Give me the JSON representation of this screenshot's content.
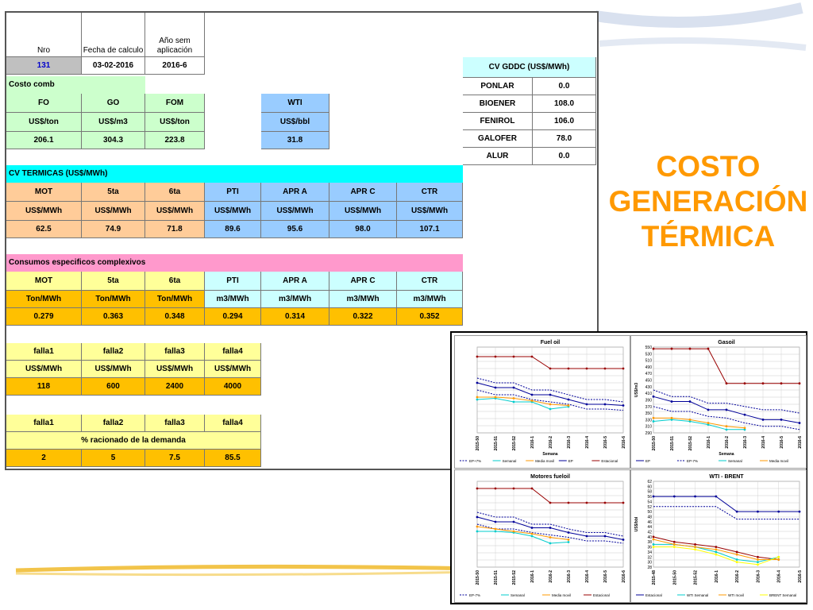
{
  "title_lines": [
    "COSTO",
    "GENERACIÓN",
    "TÉRMICA"
  ],
  "header": {
    "nro_label": "Nro",
    "fecha_label": "Fecha de calculo",
    "ano_label": "Año sem aplicación",
    "nro_value": "131",
    "fecha_value": "03-02-2016",
    "ano_value": "2016-6"
  },
  "costo_comb": {
    "section_label": "Costo comb",
    "headers": [
      "FO",
      "GO",
      "FOM"
    ],
    "units": [
      "US$/ton",
      "US$/m3",
      "US$/ton"
    ],
    "values": [
      "206.1",
      "304.3",
      "223.8"
    ],
    "wti_label": "WTI",
    "wti_unit": "US$/bbl",
    "wti_value": "31.8"
  },
  "cv_gddc": {
    "label": "CV GDDC (US$/MWh)",
    "rows": [
      {
        "name": "PONLAR",
        "value": "0.0"
      },
      {
        "name": "BIOENER",
        "value": "108.0"
      },
      {
        "name": "FENIROL",
        "value": "106.0"
      },
      {
        "name": "GALOFER",
        "value": "78.0"
      },
      {
        "name": "ALUR",
        "value": "0.0"
      }
    ]
  },
  "cv_termicas": {
    "label": "CV TERMICAS (US$/MWh)",
    "headers": [
      "MOT",
      "5ta",
      "6ta",
      "PTI",
      "APR A",
      "APR C",
      "CTR"
    ],
    "units": [
      "US$/MWh",
      "US$/MWh",
      "US$/MWh",
      "US$/MWh",
      "US$/MWh",
      "US$/MWh",
      "US$/MWh"
    ],
    "values": [
      "62.5",
      "74.9",
      "71.8",
      "89.6",
      "95.6",
      "98.0",
      "107.1"
    ]
  },
  "consumos": {
    "label": "Consumos especificos complexivos",
    "headers": [
      "MOT",
      "5ta",
      "6ta",
      "PTI",
      "APR A",
      "APR C",
      "CTR"
    ],
    "units": [
      "Ton/MWh",
      "Ton/MWh",
      "Ton/MWh",
      "m3/MWh",
      "m3/MWh",
      "m3/MWh",
      "m3/MWh"
    ],
    "values": [
      "0.279",
      "0.363",
      "0.348",
      "0.294",
      "0.314",
      "0.322",
      "0.352"
    ]
  },
  "fallas": {
    "headers": [
      "falla1",
      "falla2",
      "falla3",
      "falla4"
    ],
    "units": [
      "US$/MWh",
      "US$/MWh",
      "US$/MWh",
      "US$/MWh"
    ],
    "values": [
      "118",
      "600",
      "2400",
      "4000"
    ]
  },
  "racionado": {
    "headers": [
      "falla1",
      "falla2",
      "falla3",
      "falla4"
    ],
    "label": "% racionado de la demanda",
    "values": [
      "2",
      "5",
      "7.5",
      "85.5"
    ]
  },
  "colors": {
    "title": "#ff9900",
    "light_green": "#ccffcc",
    "light_blue": "#99ccff",
    "peach": "#ffcc99",
    "cyan": "#00ffff",
    "pink": "#ff99cc",
    "orange": "#ffc000",
    "light_yellow": "#ffff99"
  },
  "chart_data": [
    {
      "type": "line",
      "title": "Fuel oil",
      "xlabel": "Semana",
      "ylabel": "",
      "categories": [
        "2015-50",
        "2015-51",
        "2015-52",
        "2016-1",
        "2016-2",
        "2016-3",
        "2016-4",
        "2016-5",
        "2016-6"
      ],
      "ylim": [
        200,
        560
      ],
      "y_ticks": [],
      "legend": [
        "EP+7%",
        "Semanal",
        "Media movil",
        "EP",
        "Estacional"
      ],
      "series": [
        {
          "name": "Estacional",
          "color": "#990000",
          "values": [
            520,
            520,
            520,
            520,
            470,
            470,
            470,
            470,
            470
          ]
        },
        {
          "name": "EP+7%",
          "color": "#000099",
          "dash": true,
          "values": [
            430,
            410,
            410,
            380,
            380,
            360,
            340,
            340,
            330
          ]
        },
        {
          "name": "EP",
          "color": "#000099",
          "values": [
            410,
            390,
            390,
            360,
            360,
            340,
            320,
            320,
            315
          ]
        },
        {
          "name": "EP-7%",
          "color": "#000099",
          "dash": true,
          "values": [
            380,
            360,
            360,
            340,
            330,
            320,
            300,
            300,
            295
          ]
        },
        {
          "name": "Semanal",
          "color": "#00cccc",
          "values": [
            340,
            345,
            330,
            330,
            300,
            310,
            null,
            null,
            null
          ]
        },
        {
          "name": "Media movil",
          "color": "#ff9900",
          "values": [
            350,
            350,
            345,
            335,
            320,
            315,
            null,
            null,
            null
          ]
        }
      ]
    },
    {
      "type": "line",
      "title": "Gasoil",
      "xlabel": "Semana",
      "ylabel": "US$/m3",
      "categories": [
        "2015-50",
        "2015-51",
        "2015-52",
        "2016-1",
        "2016-2",
        "2016-3",
        "2016-4",
        "2016-5",
        "2016-6"
      ],
      "ylim": [
        290,
        550
      ],
      "y_ticks": [
        "550",
        "530",
        "510",
        "490",
        "470",
        "450",
        "430",
        "410",
        "390",
        "370",
        "350",
        "330",
        "310",
        "290"
      ],
      "legend": [
        "EP",
        "EP-7%",
        "Semanal",
        "Media movil"
      ],
      "series": [
        {
          "name": "",
          "color": "#990000",
          "values": [
            545,
            545,
            545,
            545,
            440,
            440,
            440,
            440,
            440
          ]
        },
        {
          "name": "",
          "color": "#000099",
          "dash": true,
          "values": [
            420,
            400,
            400,
            380,
            380,
            370,
            360,
            360,
            350
          ]
        },
        {
          "name": "EP",
          "color": "#000099",
          "values": [
            400,
            385,
            385,
            360,
            360,
            345,
            330,
            330,
            320
          ]
        },
        {
          "name": "EP-7%",
          "color": "#000099",
          "dash": true,
          "values": [
            370,
            355,
            355,
            340,
            335,
            320,
            310,
            310,
            300
          ]
        },
        {
          "name": "Semanal",
          "color": "#00cccc",
          "values": [
            325,
            330,
            325,
            315,
            300,
            300,
            null,
            null,
            null
          ]
        },
        {
          "name": "Media movil",
          "color": "#ff9900",
          "values": [
            335,
            335,
            330,
            320,
            310,
            305,
            null,
            null,
            null
          ]
        }
      ]
    },
    {
      "type": "line",
      "title": "Motores fueloil",
      "xlabel": "",
      "ylabel": "",
      "categories": [
        "2015-50",
        "2015-51",
        "2015-52",
        "2016-1",
        "2016-2",
        "2016-3",
        "2016-4",
        "2016-5",
        "2016-6"
      ],
      "ylim": [
        200,
        560
      ],
      "y_ticks": [],
      "legend": [
        "EP-7%",
        "Semanal",
        "Media movil",
        "Estacional"
      ],
      "series": [
        {
          "name": "Estacional",
          "color": "#990000",
          "values": [
            530,
            530,
            530,
            530,
            470,
            470,
            470,
            470,
            470
          ]
        },
        {
          "name": "",
          "color": "#000099",
          "dash": true,
          "values": [
            430,
            410,
            410,
            380,
            380,
            360,
            345,
            345,
            330
          ]
        },
        {
          "name": "",
          "color": "#000099",
          "values": [
            410,
            390,
            390,
            365,
            365,
            345,
            330,
            330,
            315
          ]
        },
        {
          "name": "EP-7%",
          "color": "#000099",
          "dash": true,
          "values": [
            380,
            360,
            360,
            345,
            335,
            325,
            310,
            310,
            300
          ]
        },
        {
          "name": "Semanal",
          "color": "#00cccc",
          "values": [
            350,
            350,
            345,
            330,
            300,
            305,
            null,
            null,
            null
          ]
        },
        {
          "name": "Media movil",
          "color": "#ff9900",
          "values": [
            370,
            360,
            350,
            340,
            325,
            315,
            null,
            null,
            null
          ]
        }
      ]
    },
    {
      "type": "line",
      "title": "WTI - BRENT",
      "xlabel": "",
      "ylabel": "US$/bbl",
      "categories": [
        "2015-48",
        "2015-50",
        "2015-52",
        "2016-1",
        "2016-2",
        "2016-3",
        "2016-4",
        "2016-5"
      ],
      "ylim": [
        28,
        62
      ],
      "y_ticks": [
        "62",
        "60",
        "58",
        "56",
        "54",
        "52",
        "50",
        "48",
        "46",
        "44",
        "42",
        "40",
        "38",
        "36",
        "34",
        "32",
        "30",
        "28"
      ],
      "legend": [
        "Estacional",
        "WTI Semanal",
        "WTI movil",
        "BRENT Semanal"
      ],
      "series": [
        {
          "name": "Estacional",
          "color": "#000099",
          "values": [
            56,
            56,
            56,
            56,
            50,
            50,
            50,
            50
          ]
        },
        {
          "name": "",
          "color": "#000099",
          "dash": true,
          "values": [
            52,
            52,
            52,
            52,
            47,
            47,
            47,
            47
          ]
        },
        {
          "name": "",
          "color": "#990000",
          "values": [
            40,
            38,
            37,
            36,
            34,
            32,
            31,
            null
          ]
        },
        {
          "name": "WTI Semanal",
          "color": "#00cccc",
          "values": [
            37,
            37,
            36,
            34,
            31,
            30,
            32,
            null
          ]
        },
        {
          "name": "WTI movil",
          "color": "#ff9900",
          "values": [
            39,
            37,
            36,
            35,
            33,
            31,
            31,
            null
          ]
        },
        {
          "name": "BRENT Semanal",
          "color": "#ffff00",
          "values": [
            36,
            36,
            35,
            33,
            30,
            29,
            32,
            null
          ]
        }
      ]
    }
  ]
}
